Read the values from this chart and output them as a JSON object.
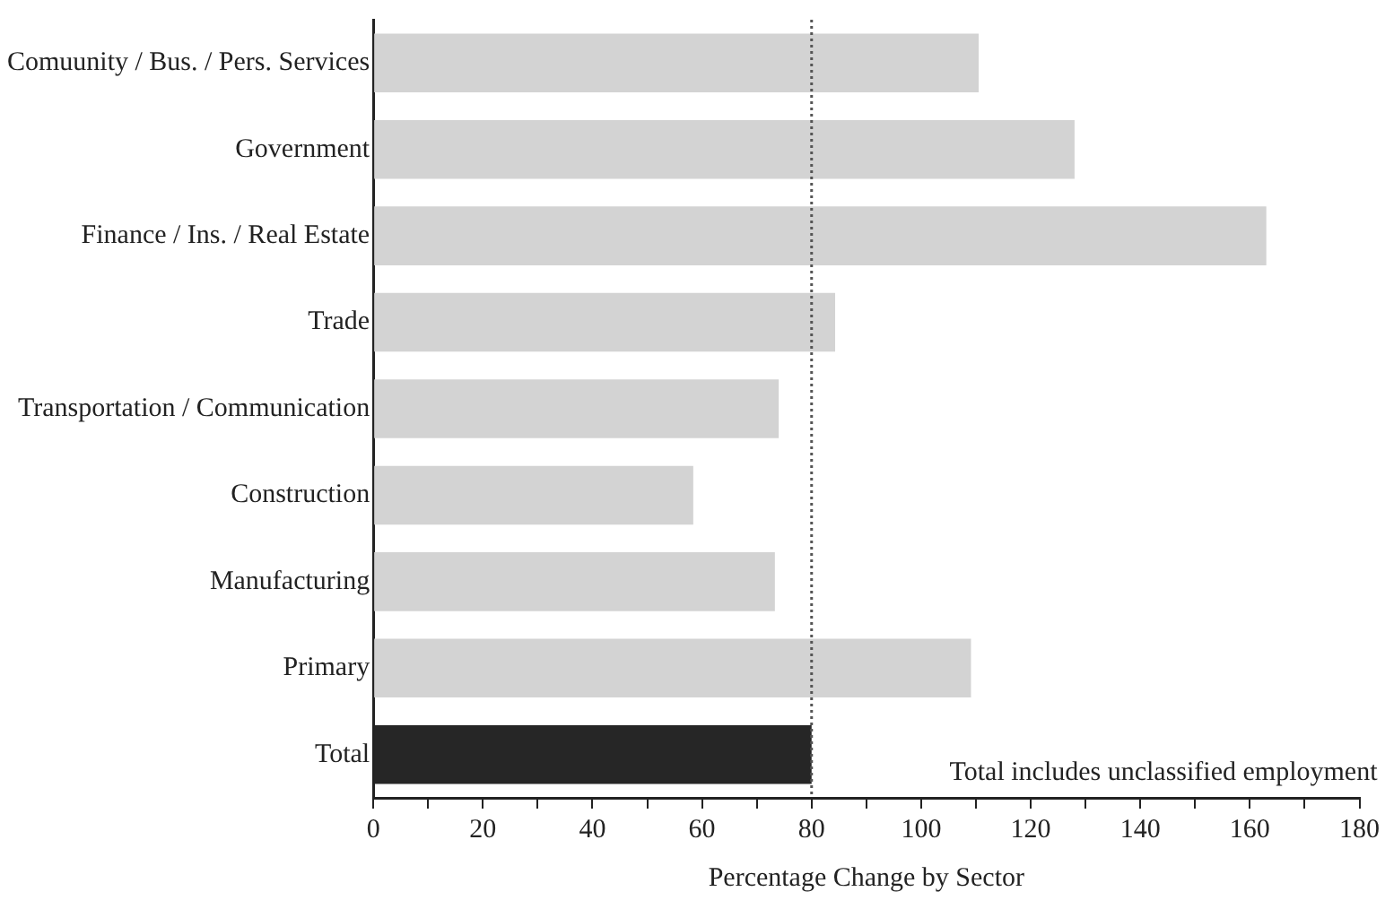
{
  "chart_data": {
    "type": "bar",
    "orientation": "horizontal",
    "xlabel": "Percentage Change by Sector",
    "categories": [
      "Comuunity / Bus. / Pers. Services",
      "Government",
      "Finance / Ins. / Real Estate",
      "Trade",
      "Transportation / Communication",
      "Construction",
      "Manufacturing",
      "Primary",
      "Total"
    ],
    "values": [
      110.5,
      128,
      163,
      84.3,
      74,
      58.4,
      73.3,
      109.1,
      80
    ],
    "colors": [
      "#d3d3d3",
      "#d3d3d3",
      "#d3d3d3",
      "#d3d3d3",
      "#d3d3d3",
      "#d3d3d3",
      "#d3d3d3",
      "#d3d3d3",
      "#262626"
    ],
    "xlim": [
      0,
      180
    ],
    "xticks": [
      0,
      {
        "value": 10,
        "label": null
      },
      20,
      {
        "value": 30,
        "label": null
      },
      40,
      {
        "value": 50,
        "label": null
      },
      60,
      {
        "value": 70,
        "label": null
      },
      80,
      {
        "value": 90,
        "label": null
      },
      100,
      {
        "value": 110,
        "label": null
      },
      120,
      {
        "value": 130,
        "label": null
      },
      140,
      {
        "value": 150,
        "label": null
      },
      160,
      {
        "value": 170,
        "label": null
      },
      180
    ],
    "ref_lines": [
      {
        "axis": "x",
        "value": 80,
        "line_style": "dotted",
        "color": "#555555"
      }
    ],
    "annotations": [
      "Total includes unclassified employment"
    ],
    "grid": false,
    "legend": false
  }
}
